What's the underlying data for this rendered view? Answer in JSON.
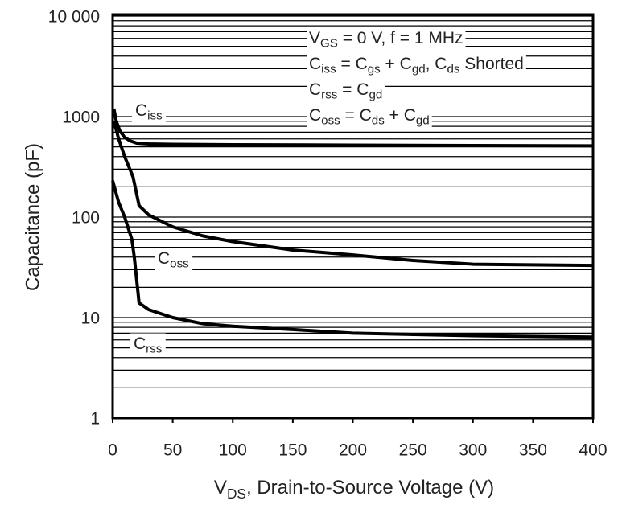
{
  "chart_data": {
    "type": "line",
    "log_y": true,
    "xlabel": [
      "V",
      "DS",
      ", Drain-to-Source Voltage (V)"
    ],
    "ylabel": "Capacitance (pF)",
    "annotations": [
      [
        "V",
        "GS",
        " = 0 V, f = 1 MHz"
      ],
      [
        "C",
        "iss",
        " = C",
        "gs",
        " + C",
        "gd",
        ", C",
        "ds",
        " Shorted"
      ],
      [
        "C",
        "rss",
        " = C",
        "gd"
      ],
      [
        "C",
        "oss",
        " = C",
        "ds",
        " + C",
        "gd"
      ]
    ],
    "xlim": [
      0,
      400
    ],
    "xticks": [
      0,
      50,
      100,
      150,
      200,
      250,
      300,
      350,
      400
    ],
    "ylim": [
      1,
      10000
    ],
    "yticks": [
      1,
      10,
      100,
      1000,
      {
        "value": 10000,
        "label": "10 000"
      }
    ],
    "yminorticks": [
      2,
      3,
      4,
      5,
      6,
      7,
      8,
      9,
      20,
      30,
      40,
      50,
      60,
      70,
      80,
      90,
      200,
      300,
      400,
      500,
      600,
      700,
      800,
      900,
      2000,
      3000,
      4000,
      5000,
      6000,
      7000,
      8000,
      9000
    ],
    "grid": true,
    "series": [
      {
        "name": [
          "C",
          "iss"
        ],
        "color": "#000000",
        "x": [
          1,
          3,
          6,
          10,
          15,
          20,
          30,
          50,
          100,
          200,
          300,
          400
        ],
        "values": [
          1200,
          900,
          720,
          620,
          570,
          545,
          535,
          530,
          525,
          520,
          515,
          512
        ]
      },
      {
        "name": [
          "C",
          "oss"
        ],
        "color": "#000000",
        "x": [
          1,
          5,
          10,
          17,
          22,
          30,
          50,
          75,
          100,
          150,
          200,
          250,
          300,
          400
        ],
        "values": [
          900,
          600,
          400,
          250,
          130,
          105,
          80,
          65,
          57,
          47,
          42,
          37,
          34,
          33
        ]
      },
      {
        "name": [
          "C",
          "rss"
        ],
        "color": "#000000",
        "x": [
          0,
          5,
          10,
          16,
          18,
          22,
          30,
          50,
          75,
          100,
          150,
          200,
          300,
          400
        ],
        "values": [
          230,
          140,
          100,
          60,
          40,
          14,
          12,
          10,
          8.7,
          8.2,
          7.6,
          7.0,
          6.6,
          6.4
        ]
      }
    ]
  }
}
